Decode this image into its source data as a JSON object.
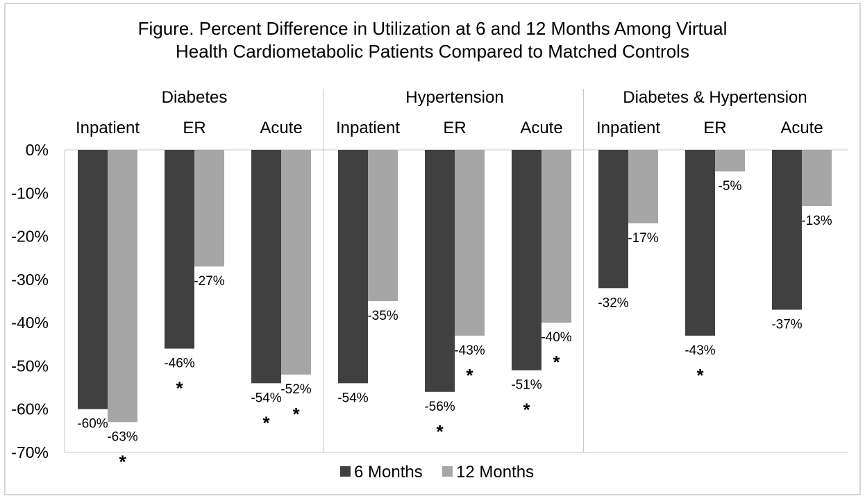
{
  "chart_data": {
    "type": "bar",
    "title": "Figure. Percent Difference in Utilization at 6 and 12 Months Among Virtual Health Cardiometabolic Patients Compared to Matched Controls",
    "title_lines": [
      "Figure. Percent Difference in Utilization at 6 and 12 Months Among Virtual",
      "Health Cardiometabolic Patients Compared to Matched Controls"
    ],
    "xlabel": "",
    "ylabel": "",
    "ylim": [
      -70,
      0
    ],
    "y_ticks": [
      "0%",
      "-10%",
      "-20%",
      "-30%",
      "-40%",
      "-50%",
      "-60%",
      "-70%"
    ],
    "y_tick_values": [
      0,
      -10,
      -20,
      -30,
      -40,
      -50,
      -60,
      -70
    ],
    "legend_position": "bottom",
    "grid": false,
    "groups": [
      {
        "name": "Diabetes",
        "categories": [
          {
            "name": "Inpatient",
            "values": [
              -60,
              -63
            ],
            "labels": [
              "-60%",
              "-63%"
            ],
            "significant": [
              false,
              true
            ]
          },
          {
            "name": "ER",
            "values": [
              -46,
              -27
            ],
            "labels": [
              "-46%",
              "-27%"
            ],
            "significant": [
              true,
              false
            ]
          },
          {
            "name": "Acute",
            "values": [
              -54,
              -52
            ],
            "labels": [
              "-54%",
              "-52%"
            ],
            "significant": [
              true,
              true
            ]
          }
        ]
      },
      {
        "name": "Hypertension",
        "categories": [
          {
            "name": "Inpatient",
            "values": [
              -54,
              -35
            ],
            "labels": [
              "-54%",
              "-35%"
            ],
            "significant": [
              false,
              false
            ]
          },
          {
            "name": "ER",
            "values": [
              -56,
              -43
            ],
            "labels": [
              "-56%",
              "-43%"
            ],
            "significant": [
              true,
              true
            ]
          },
          {
            "name": "Acute",
            "values": [
              -51,
              -40
            ],
            "labels": [
              "-51%",
              "-40%"
            ],
            "significant": [
              true,
              true
            ]
          }
        ]
      },
      {
        "name": "Diabetes & Hypertension",
        "categories": [
          {
            "name": "Inpatient",
            "values": [
              -32,
              -17
            ],
            "labels": [
              "-32%",
              "-17%"
            ],
            "significant": [
              false,
              false
            ]
          },
          {
            "name": "ER",
            "values": [
              -43,
              -5
            ],
            "labels": [
              "-43%",
              "-5%"
            ],
            "significant": [
              true,
              false
            ]
          },
          {
            "name": "Acute",
            "values": [
              -37,
              -13
            ],
            "labels": [
              "-37%",
              "-13%"
            ],
            "significant": [
              false,
              false
            ]
          }
        ]
      }
    ],
    "series": [
      {
        "name": "6 Months",
        "color": "#404040"
      },
      {
        "name": "12 Months",
        "color": "#a6a6a6"
      }
    ],
    "significance_marker": "*"
  }
}
